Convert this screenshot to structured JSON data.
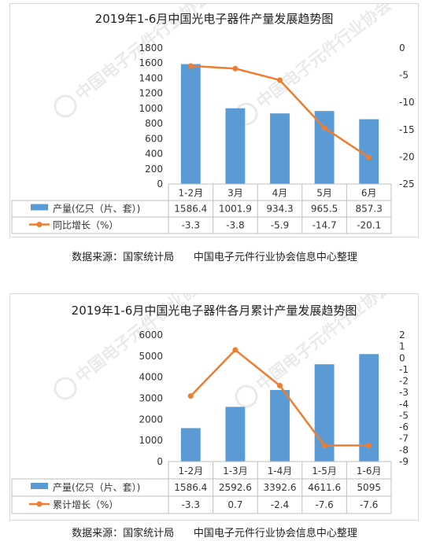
{
  "chart_data": [
    {
      "type": "bar",
      "title": "2019年1-6月中国光电子器件产量发展趋势图",
      "categories": [
        "1-2月",
        "3月",
        "4月",
        "5月",
        "6月"
      ],
      "series": [
        {
          "name": "产量(亿只（片、套）)",
          "type": "bar",
          "axis": "left",
          "values": [
            1586.4,
            1001.9,
            934.3,
            965.5,
            857.3
          ],
          "labels": [
            "1586.4",
            "1001.9",
            "934.3",
            "965.5",
            "857.3"
          ]
        },
        {
          "name": "同比增长（%）",
          "type": "line",
          "axis": "right",
          "values": [
            -3.3,
            -3.8,
            -5.9,
            -14.7,
            -20.1
          ],
          "labels": [
            "-3.3",
            "-3.8",
            "-5.9",
            "-14.7",
            "-20.1"
          ]
        }
      ],
      "ylim_left": [
        0,
        1800
      ],
      "ylim_right": [
        -25,
        0
      ],
      "yticks_left": [
        0,
        200,
        400,
        600,
        800,
        1000,
        1200,
        1400,
        1600,
        1800
      ],
      "yticks_right": [
        -25,
        -20,
        -15,
        -10,
        -5,
        0
      ],
      "legend": "data-table",
      "grid": false,
      "colors": {
        "bar": "#5b9bd5",
        "line": "#ed7d31"
      }
    },
    {
      "type": "bar",
      "title": "2019年1-6月中国光电子器件各月累计产量发展趋势图",
      "categories": [
        "1-2月",
        "1-3月",
        "1-4月",
        "1-5月",
        "1-6月"
      ],
      "series": [
        {
          "name": "产量(亿只（片、套）)",
          "type": "bar",
          "axis": "left",
          "values": [
            1586.4,
            2592.6,
            3392.6,
            4611.6,
            5095
          ],
          "labels": [
            "1586.4",
            "2592.6",
            "3392.6",
            "4611.6",
            "5095"
          ]
        },
        {
          "name": "累计增长（%）",
          "type": "line",
          "axis": "right",
          "values": [
            -3.3,
            0.7,
            -2.4,
            -7.6,
            -7.6
          ],
          "labels": [
            "-3.3",
            "0.7",
            "-2.4",
            "-7.6",
            "-7.6"
          ]
        }
      ],
      "ylim_left": [
        0,
        6000
      ],
      "ylim_right": [
        -9,
        2
      ],
      "yticks_left": [
        0,
        1000,
        2000,
        3000,
        4000,
        5000,
        6000
      ],
      "yticks_right": [
        -9,
        -8,
        -7,
        -6,
        -5,
        -4,
        -3,
        -2,
        -1,
        0,
        1,
        2
      ],
      "legend": "data-table",
      "grid": false,
      "colors": {
        "bar": "#5b9bd5",
        "line": "#ed7d31"
      }
    }
  ],
  "sources": [
    "数据来源：国家统计局      中国电子元件行业协会信息中心整理",
    "数据来源：国家统计局      中国电子元件行业协会信息中心整理"
  ],
  "watermark": {
    "icon": "ceca-logo",
    "text": "中国电子元件行业协会"
  }
}
